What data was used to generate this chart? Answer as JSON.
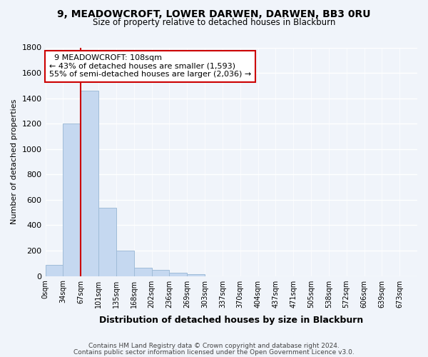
{
  "title_line1": "9, MEADOWCROFT, LOWER DARWEN, DARWEN, BB3 0RU",
  "title_line2": "Size of property relative to detached houses in Blackburn",
  "xlabel": "Distribution of detached houses by size in Blackburn",
  "ylabel": "Number of detached properties",
  "bar_labels": [
    "0sqm",
    "34sqm",
    "67sqm",
    "101sqm",
    "135sqm",
    "168sqm",
    "202sqm",
    "236sqm",
    "269sqm",
    "303sqm",
    "337sqm",
    "370sqm",
    "404sqm",
    "437sqm",
    "471sqm",
    "505sqm",
    "538sqm",
    "572sqm",
    "606sqm",
    "639sqm",
    "673sqm"
  ],
  "bar_values": [
    90,
    1200,
    1460,
    540,
    200,
    65,
    48,
    28,
    15,
    0,
    0,
    0,
    0,
    0,
    0,
    0,
    0,
    0,
    0,
    0,
    0
  ],
  "bar_color": "#c5d8f0",
  "bar_edge_color": "#a0bcd8",
  "vline_x": 2,
  "vline_color": "#cc0000",
  "ylim": [
    0,
    1800
  ],
  "yticks": [
    0,
    200,
    400,
    600,
    800,
    1000,
    1200,
    1400,
    1600,
    1800
  ],
  "annotation_title": "9 MEADOWCROFT: 108sqm",
  "annotation_line1": "← 43% of detached houses are smaller (1,593)",
  "annotation_line2": "55% of semi-detached houses are larger (2,036) →",
  "annotation_box_color": "#ffffff",
  "annotation_border_color": "#cc0000",
  "footer_line1": "Contains HM Land Registry data © Crown copyright and database right 2024.",
  "footer_line2": "Contains public sector information licensed under the Open Government Licence v3.0.",
  "background_color": "#f0f4fa"
}
